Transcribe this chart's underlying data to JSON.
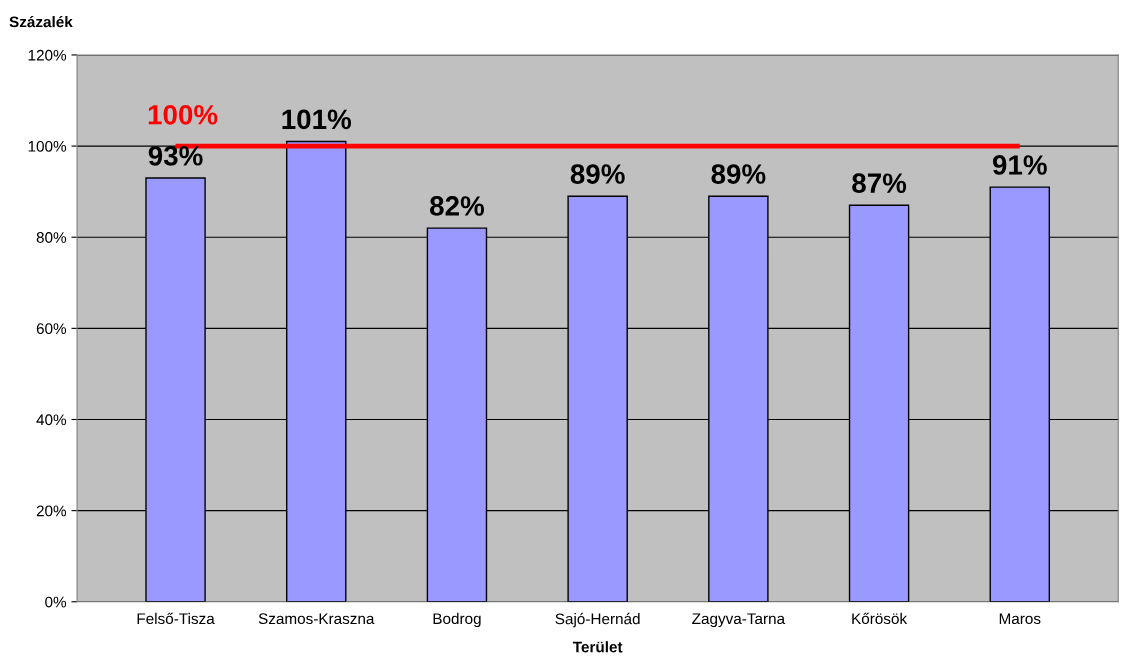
{
  "chart_data": {
    "type": "bar",
    "ylabel": "Százalék",
    "xlabel": "Terület",
    "categories": [
      "Felső-Tisza",
      "Szamos-Kraszna",
      "Bodrog",
      "Sajó-Hernád",
      "Zagyva-Tarna",
      "Kőrösök",
      "Maros"
    ],
    "values": [
      93,
      101,
      82,
      89,
      89,
      87,
      91
    ],
    "value_labels": [
      "93%",
      "101%",
      "82%",
      "89%",
      "89%",
      "87%",
      "91%"
    ],
    "color": "#9999ff",
    "ylim": [
      0,
      120
    ],
    "yticks": [
      {
        "value": 0,
        "label": "0%"
      },
      {
        "value": 20,
        "label": "20%"
      },
      {
        "value": 40,
        "label": "40%"
      },
      {
        "value": 60,
        "label": "60%"
      },
      {
        "value": 80,
        "label": "80%"
      },
      {
        "value": 100,
        "label": "100%"
      },
      {
        "value": 120,
        "label": "120%"
      }
    ],
    "grid": "y",
    "ref_lines": [
      {
        "axis": "y",
        "value": 100,
        "label": "100%",
        "color": "#ff0000",
        "line_style": "solid"
      }
    ]
  }
}
